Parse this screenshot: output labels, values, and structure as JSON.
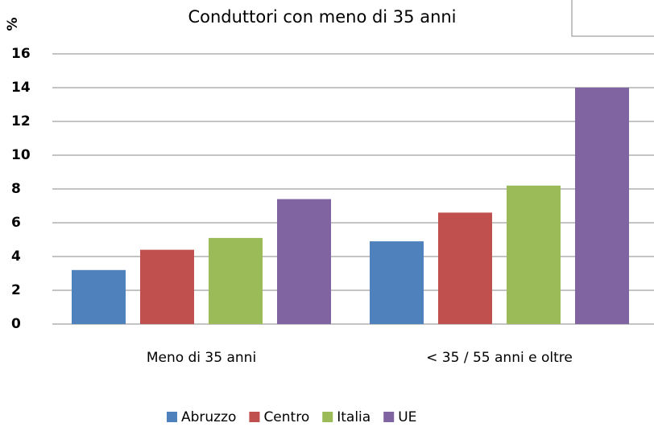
{
  "chart_data": {
    "type": "bar",
    "title": "Conduttori con meno di 35 anni",
    "y_label": "%",
    "categories": [
      "Meno di 35 anni",
      "< 35 / 55 anni e oltre"
    ],
    "series": [
      {
        "name": "Abruzzo",
        "color": "#4f81bd",
        "values": [
          3.2,
          4.9
        ]
      },
      {
        "name": "Centro",
        "color": "#c0504d",
        "values": [
          4.4,
          6.6
        ]
      },
      {
        "name": "Italia",
        "color": "#9bbb59",
        "values": [
          5.1,
          8.2
        ]
      },
      {
        "name": "UE",
        "color": "#8064a2",
        "values": [
          7.4,
          14.0
        ]
      }
    ],
    "ylim": [
      0,
      16
    ],
    "yticks": [
      0,
      2,
      4,
      6,
      8,
      10,
      12,
      14,
      16
    ],
    "grid": true
  }
}
